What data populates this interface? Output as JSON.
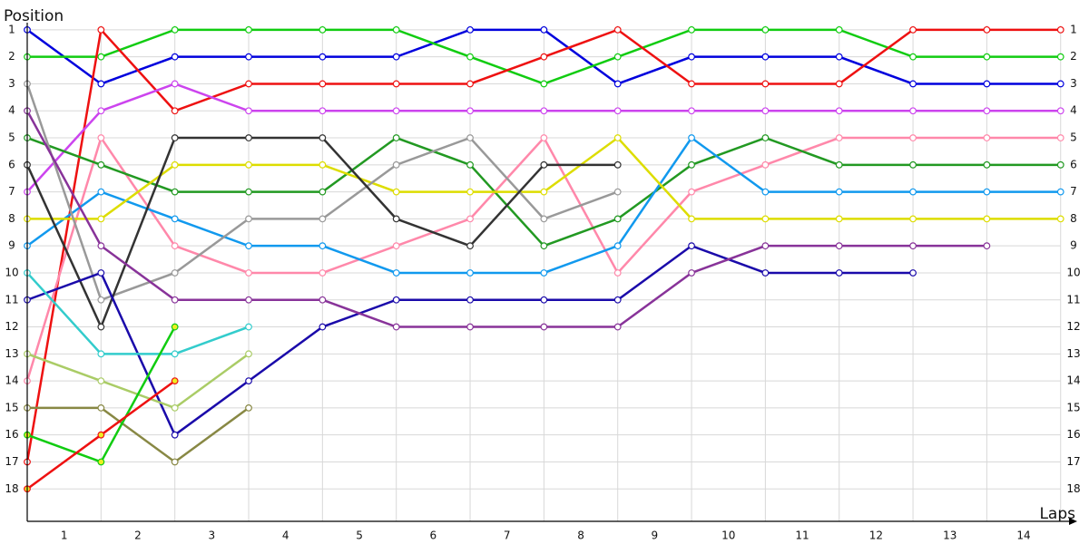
{
  "chart_data": {
    "type": "line",
    "y_label": "Position",
    "x_label": "Laps",
    "x": [
      0,
      1,
      2,
      3,
      4,
      5,
      6,
      7,
      8,
      9,
      10,
      11,
      12,
      13,
      14
    ],
    "xlim": [
      0,
      14.2
    ],
    "ylim": [
      19.2,
      0
    ],
    "xticks": [
      {
        "value": 0.5,
        "label": "1"
      },
      {
        "value": 1.5,
        "label": "2"
      },
      {
        "value": 2.5,
        "label": "3"
      },
      {
        "value": 3.5,
        "label": "4"
      },
      {
        "value": 4.5,
        "label": "5"
      },
      {
        "value": 5.5,
        "label": "6"
      },
      {
        "value": 6.5,
        "label": "7"
      },
      {
        "value": 7.5,
        "label": "8"
      },
      {
        "value": 8.5,
        "label": "9"
      },
      {
        "value": 9.5,
        "label": "10"
      },
      {
        "value": 10.5,
        "label": "11"
      },
      {
        "value": 11.5,
        "label": "12"
      },
      {
        "value": 12.5,
        "label": "13"
      },
      {
        "value": 13.5,
        "label": "14"
      }
    ],
    "yticks": [
      1,
      2,
      3,
      4,
      5,
      6,
      7,
      8,
      9,
      10,
      11,
      12,
      13,
      14,
      15,
      16,
      17,
      18
    ],
    "grid": true,
    "tick_labels_both_sides": true,
    "series": [
      {
        "color": "#0000dd",
        "marker_color": "#ffffff",
        "values": [
          1,
          3,
          2,
          2,
          2,
          2,
          1,
          1,
          3,
          2,
          2,
          2,
          3,
          3,
          3
        ]
      },
      {
        "color": "#11cc11",
        "marker_color": "#ffffff",
        "values": [
          2,
          2,
          1,
          1,
          1,
          1,
          2,
          3,
          2,
          1,
          1,
          1,
          2,
          2,
          2
        ]
      },
      {
        "color": "#ee1111",
        "marker_color": "#ffffff",
        "values": [
          17,
          1,
          4,
          3,
          3,
          3,
          3,
          2,
          1,
          3,
          3,
          3,
          1,
          1,
          1
        ]
      },
      {
        "color": "#cc44ee",
        "marker_color": "#ffffff",
        "values": [
          7,
          4,
          3,
          4,
          4,
          4,
          4,
          4,
          4,
          4,
          4,
          4,
          4,
          4,
          4
        ]
      },
      {
        "color": "#ff88aa",
        "marker_color": "#ffffff",
        "values": [
          14,
          5,
          9,
          10,
          10,
          9,
          8,
          5,
          10,
          7,
          6,
          5,
          5,
          5,
          5
        ]
      },
      {
        "color": "#229922",
        "marker_color": "#ffffff",
        "values": [
          5,
          6,
          7,
          7,
          7,
          5,
          6,
          9,
          8,
          6,
          5,
          6,
          6,
          6,
          6
        ]
      },
      {
        "color": "#1199ee",
        "marker_color": "#ffffff",
        "values": [
          9,
          7,
          8,
          9,
          9,
          10,
          10,
          10,
          9,
          5,
          7,
          7,
          7,
          7,
          7
        ]
      },
      {
        "color": "#dddd00",
        "marker_color": "#ffffff",
        "values": [
          8,
          8,
          6,
          6,
          6,
          7,
          7,
          7,
          5,
          8,
          8,
          8,
          8,
          8,
          8
        ]
      },
      {
        "color": "#999999",
        "marker_color": "#ffffff",
        "values": [
          3,
          11,
          10,
          8,
          8,
          6,
          5,
          8,
          7,
          null,
          null,
          null,
          null,
          null,
          null
        ]
      },
      {
        "color": "#333333",
        "marker_color": "#ffffff",
        "values": [
          6,
          12,
          5,
          5,
          5,
          8,
          9,
          6,
          6,
          null,
          null,
          null,
          null,
          null,
          null
        ]
      },
      {
        "color": "#1a0aaa",
        "marker_color": "#ffffff",
        "values": [
          11,
          10,
          16,
          14,
          12,
          11,
          11,
          11,
          11,
          9,
          10,
          10,
          10,
          null,
          null
        ]
      },
      {
        "color": "#883399",
        "marker_color": "#ffffff",
        "values": [
          4,
          9,
          11,
          11,
          11,
          12,
          12,
          12,
          12,
          10,
          9,
          9,
          9,
          9,
          null
        ]
      },
      {
        "color": "#33cccc",
        "marker_color": "#ffffff",
        "values": [
          10,
          13,
          13,
          12,
          null,
          null,
          null,
          null,
          null,
          null,
          null,
          null,
          null,
          null,
          null
        ]
      },
      {
        "color": "#aacc66",
        "marker_color": "#ffffff",
        "values": [
          13,
          14,
          15,
          13,
          null,
          null,
          null,
          null,
          null,
          null,
          null,
          null,
          null,
          null,
          null
        ]
      },
      {
        "color": "#888844",
        "marker_color": "#ffffff",
        "values": [
          15,
          15,
          17,
          15,
          null,
          null,
          null,
          null,
          null,
          null,
          null,
          null,
          null,
          null,
          null
        ]
      },
      {
        "color": "#11cc11",
        "marker_color": "#eeee22",
        "values": [
          16,
          17,
          12,
          null,
          null,
          null,
          null,
          null,
          null,
          null,
          null,
          null,
          null,
          null,
          null
        ]
      },
      {
        "color": "#ee1111",
        "marker_color": "#eeee22",
        "values": [
          18,
          16,
          14,
          null,
          null,
          null,
          null,
          null,
          null,
          null,
          null,
          null,
          null,
          null,
          null
        ]
      }
    ]
  }
}
